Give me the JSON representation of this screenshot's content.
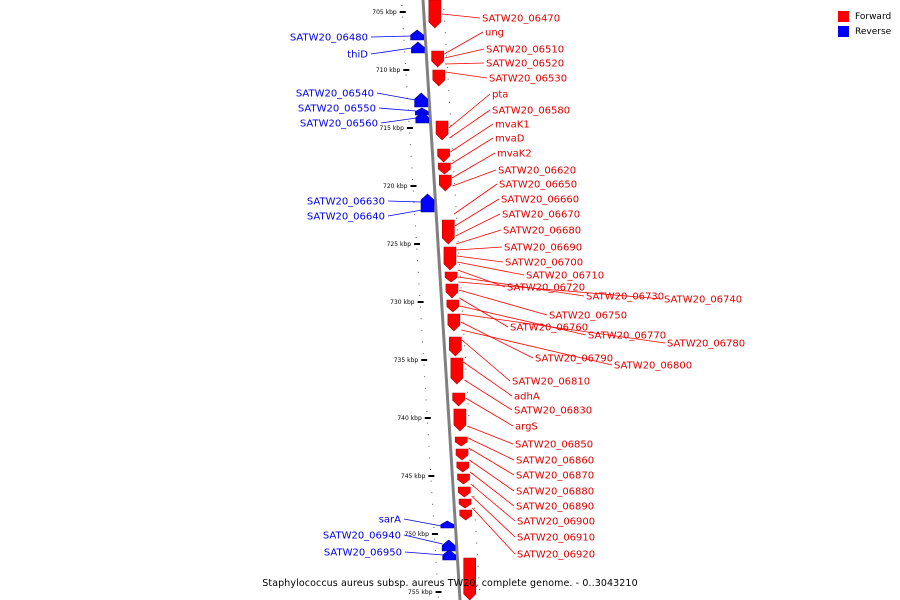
{
  "legend": {
    "forward_label": "Forward",
    "reverse_label": "Reverse",
    "forward_color": "#ff0000",
    "reverse_color": "#0000ff"
  },
  "caption": "Staphylococcus aureus subsp. aureus TW20, complete genome. - 0..3043210",
  "ruler": {
    "unit": "kbp",
    "ticks": [
      "705 kbp",
      "710 kbp",
      "715 kbp",
      "720 kbp",
      "725 kbp",
      "730 kbp",
      "735 kbp",
      "740 kbp",
      "745 kbp",
      "750 kbp",
      "755 kbp"
    ]
  },
  "forward_genes": [
    "SATW20_06470",
    "ung",
    "SATW20_06510",
    "SATW20_06520",
    "SATW20_06530",
    "pta",
    "SATW20_06580",
    "mvaK1",
    "mvaD",
    "mvaK2",
    "SATW20_06620",
    "SATW20_06650",
    "SATW20_06660",
    "SATW20_06670",
    "SATW20_06680",
    "SATW20_06690",
    "SATW20_06700",
    "SATW20_06710",
    "SATW20_06720",
    "SATW20_06730",
    "SATW20_06740",
    "SATW20_06750",
    "SATW20_06760",
    "SATW20_06770",
    "SATW20_06780",
    "SATW20_06790",
    "SATW20_06800",
    "SATW20_06810",
    "adhA",
    "SATW20_06830",
    "argS",
    "SATW20_06850",
    "SATW20_06860",
    "SATW20_06870",
    "SATW20_06880",
    "SATW20_06890",
    "SATW20_06900",
    "SATW20_06910",
    "SATW20_06920"
  ],
  "reverse_genes": [
    "SATW20_06480",
    "thiD",
    "SATW20_06540",
    "SATW20_06550",
    "SATW20_06560",
    "SATW20_06630",
    "SATW20_06640",
    "sarA",
    "SATW20_06940",
    "SATW20_06950"
  ]
}
